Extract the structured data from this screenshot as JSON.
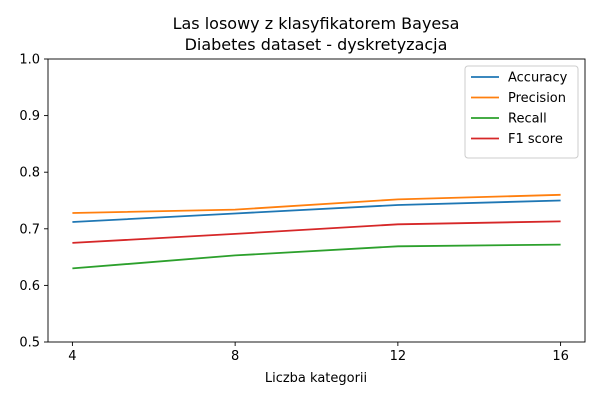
{
  "chart_data": {
    "type": "line",
    "title": "Las losowy z klasyfikatorem Bayesa",
    "subtitle": "Diabetes dataset - dyskretyzacja",
    "xlabel": "Liczba kategorii",
    "ylabel": "",
    "x": [
      4,
      8,
      12,
      16
    ],
    "xticks": [
      "4",
      "8",
      "12",
      "16"
    ],
    "xlim": [
      3.4,
      16.6
    ],
    "ylim": [
      0.5,
      1.0
    ],
    "yticks": [
      "0.5",
      "0.6",
      "0.7",
      "0.8",
      "0.9",
      "1.0"
    ],
    "grid": false,
    "legend_position": "top-right",
    "series": [
      {
        "name": "Accuracy",
        "color": "#1f77b4",
        "values": [
          0.712,
          0.727,
          0.742,
          0.75
        ]
      },
      {
        "name": "Precision",
        "color": "#ff7f0e",
        "values": [
          0.728,
          0.734,
          0.752,
          0.76
        ]
      },
      {
        "name": "Recall",
        "color": "#2ca02c",
        "values": [
          0.63,
          0.653,
          0.669,
          0.672
        ]
      },
      {
        "name": "F1 score",
        "color": "#d62728",
        "values": [
          0.675,
          0.691,
          0.708,
          0.713
        ]
      }
    ]
  }
}
